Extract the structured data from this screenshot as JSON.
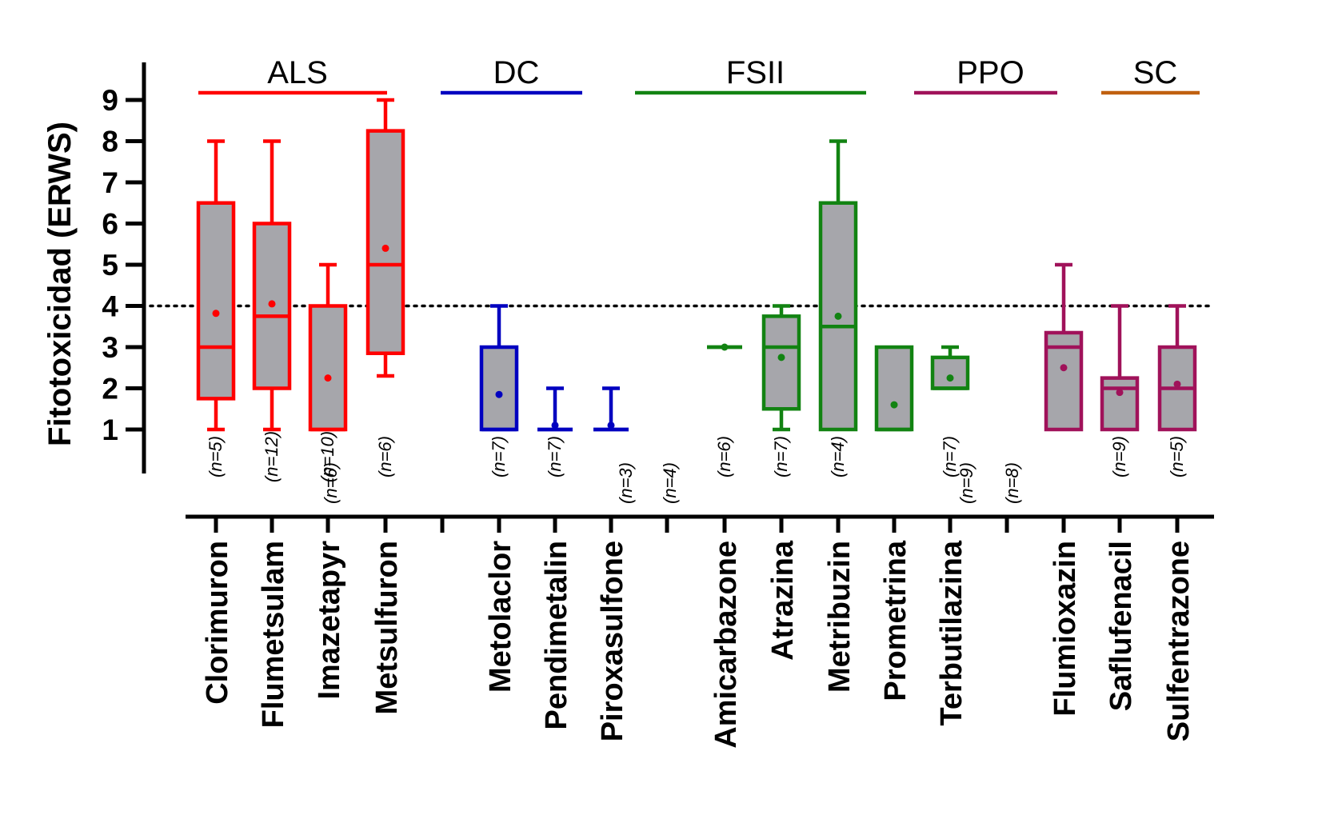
{
  "chart_data": {
    "type": "box",
    "ylabel": "Fitotoxicidad (ERWS)",
    "xlabel": "",
    "ylim": [
      0,
      9.7
    ],
    "yticks": [
      "1",
      "2",
      "3",
      "4",
      "5",
      "6",
      "7",
      "8",
      "9"
    ],
    "reference_line": {
      "y": 4,
      "style": "dotted"
    },
    "groups": [
      {
        "name": "ALS",
        "color": "#ff0000",
        "from": 0,
        "to": 3
      },
      {
        "name": "DC",
        "color": "#0000c0",
        "from": 4,
        "to": 6
      },
      {
        "name": "FSII",
        "color": "#128312",
        "from": 7,
        "to": 11
      },
      {
        "name": "PPO",
        "color": "#a0125a",
        "from": 12,
        "to": 14
      },
      {
        "name": "SC",
        "color": "#c0600f",
        "from": 13,
        "to": 14
      }
    ],
    "categories": [
      {
        "name": "Clorimuron",
        "n": "(n=5)",
        "color": "#ff0000",
        "min": 1,
        "q1": 1.75,
        "median": 3,
        "q3": 6.5,
        "max": 8,
        "mean": 3.82
      },
      {
        "name": "Flumetsulam",
        "n": "(n=12)",
        "color": "#ff0000",
        "min": 1,
        "q1": 2,
        "median": 3.75,
        "q3": 6,
        "max": 8,
        "mean": 4.05
      },
      {
        "name": "Imazetapyr",
        "n": "(n=10)",
        "color": "#ff0000",
        "min": 1,
        "q1": 1,
        "median": 1,
        "q3": 4,
        "max": 5,
        "mean": 2.25
      },
      {
        "name": "Metsulfuron",
        "n": "(n=6)",
        "color": "#ff0000",
        "min": 2.3,
        "q1": 2.85,
        "median": 5,
        "q3": 8.25,
        "max": 9,
        "mean": 5.4
      },
      {
        "name": "Metolaclor",
        "n": "(n=7)",
        "color": "#0000c0",
        "min": 1,
        "q1": 1,
        "median": 1,
        "q3": 3,
        "max": 4,
        "mean": 1.85
      },
      {
        "name": "Pendimetalin",
        "n": "(n=7)",
        "color": "#0000c0",
        "min": 1,
        "q1": 1,
        "median": 1,
        "q3": 1,
        "max": 2,
        "mean": 1.1
      },
      {
        "name": "Piroxasulfone",
        "n": "",
        "color": "#0000c0",
        "min": 1,
        "q1": 1,
        "median": 1,
        "q3": 1,
        "max": 2,
        "mean": 1.1
      },
      {
        "name": "Amicarbazone",
        "n": "(n=6)",
        "color": "#128312",
        "min": 3,
        "q1": 3,
        "median": 3,
        "q3": 3,
        "max": 3,
        "mean": 3
      },
      {
        "name": "Atrazina",
        "n": "(n=7)",
        "color": "#128312",
        "min": 1,
        "q1": 1.5,
        "median": 3,
        "q3": 3.75,
        "max": 4,
        "mean": 2.75
      },
      {
        "name": "Metribuzin",
        "n": "(n=4)",
        "color": "#128312",
        "min": 1,
        "q1": 1,
        "median": 3.5,
        "q3": 6.5,
        "max": 8,
        "mean": 3.75
      },
      {
        "name": "Prometrina",
        "n": "",
        "color": "#128312",
        "min": 1,
        "q1": 1,
        "median": 1,
        "q3": 3,
        "max": 3,
        "mean": 1.6
      },
      {
        "name": "Terbutilazina",
        "n": "(n=7)",
        "color": "#128312",
        "min": 2,
        "q1": 2,
        "median": 2,
        "q3": 2.75,
        "max": 3,
        "mean": 2.25
      },
      {
        "name": "Flumioxazin",
        "n": "",
        "color": "#a0125a",
        "min": 1,
        "q1": 1,
        "median": 3,
        "q3": 3.35,
        "max": 5,
        "mean": 2.5
      },
      {
        "name": "Saflufenacil",
        "n": "(n=9)",
        "color": "#a0125a",
        "min": 1,
        "q1": 1,
        "median": 2,
        "q3": 2.25,
        "max": 4,
        "mean": 1.9
      },
      {
        "name": "Sulfentrazone",
        "n": "(n=5)",
        "color": "#a0125a",
        "min": 1,
        "q1": 1,
        "median": 2,
        "q3": 3,
        "max": 4,
        "mean": 2.1
      }
    ],
    "gap_n_labels": [
      {
        "text": "(n=6)",
        "after": 3
      },
      {
        "text": "(n=3)",
        "after": 6
      },
      {
        "text": "(n=4)",
        "after": 6
      },
      {
        "text": "(n=9)",
        "after": 11
      },
      {
        "text": "(n=8)",
        "after": 11
      }
    ],
    "axis_color": "#000000",
    "box_fill": "#a6a6ab"
  }
}
